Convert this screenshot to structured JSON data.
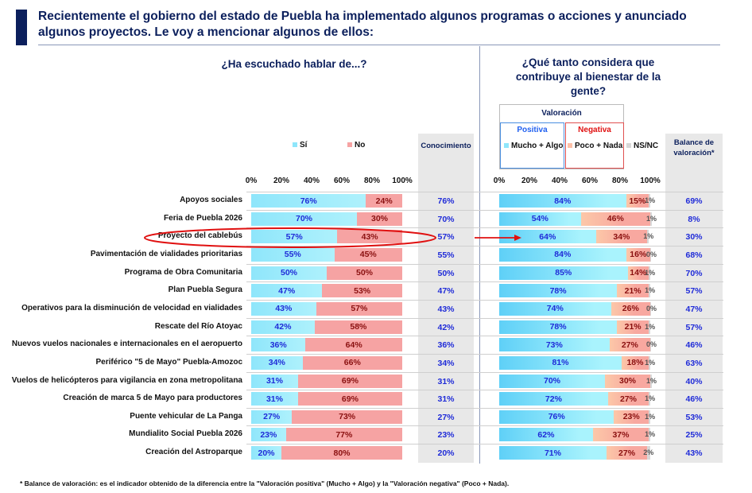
{
  "title": "Recientemente el gobierno del estado de Puebla ha implementado algunos programas o acciones y anunciado algunos proyectos. Le voy a mencionar algunos de ellos:",
  "footnote": "* Balance de valoración: es el indicador obtenido de la diferencia entre la \"Valoración positiva\" (Mucho + Algo) y la \"Valoración negativa\" (Poco + Nada).",
  "colors": {
    "title": "#0b1f5c",
    "si": "#8fe6fb",
    "no": "#f6a3a3",
    "positive": "#5fd0f7",
    "negative": "#f8a8a0",
    "nsnc": "#d8d8d8",
    "value_text": "#1f2bd8",
    "highlight": "#e01010"
  },
  "chart_data": [
    {
      "type": "bar",
      "stacked": true,
      "orientation": "horizontal",
      "title": "¿Ha escuchado hablar de...?",
      "xlim": [
        0,
        100
      ],
      "ticks": [
        "0%",
        "20%",
        "40%",
        "60%",
        "80%",
        "100%"
      ],
      "legend": [
        "Sí",
        "No"
      ],
      "extra_column_header": "Conocimiento",
      "categories": [
        "Apoyos sociales",
        "Feria de Puebla 2026",
        "Proyecto del cablebús",
        "Pavimentación de vialidades prioritarias",
        "Programa de Obra Comunitaria",
        "Plan Puebla Segura",
        "Operativos para la disminución de velocidad en vialidades",
        "Rescate del Río Atoyac",
        "Nuevos vuelos nacionales e internacionales en el aeropuerto",
        "Periférico \"5 de Mayo\" Puebla-Amozoc",
        "Vuelos de helicópteros para vigilancia en zona metropolitana",
        "Creación de marca 5 de Mayo para productores",
        "Puente vehicular de La Panga",
        "Mundialito Social Puebla 2026",
        "Creación del Astroparque"
      ],
      "series": [
        {
          "name": "Sí",
          "values": [
            76,
            70,
            57,
            55,
            50,
            47,
            43,
            42,
            36,
            34,
            31,
            31,
            27,
            23,
            20
          ]
        },
        {
          "name": "No",
          "values": [
            24,
            30,
            43,
            45,
            50,
            53,
            57,
            58,
            64,
            66,
            69,
            69,
            73,
            77,
            80
          ]
        }
      ],
      "conocimiento": [
        76,
        70,
        57,
        55,
        50,
        47,
        43,
        42,
        36,
        34,
        31,
        31,
        27,
        23,
        20
      ],
      "highlighted_category": "Proyecto del cablebús"
    },
    {
      "type": "bar",
      "stacked": true,
      "orientation": "horizontal",
      "title": "¿Qué tanto considera que contribuye al bienestar de la gente?",
      "xlim": [
        0,
        100
      ],
      "ticks": [
        "0%",
        "20%",
        "40%",
        "60%",
        "80%",
        "100%"
      ],
      "legend_group": "Valoración",
      "legend_positive": "Positiva",
      "legend_negative": "Negativa",
      "legend": [
        "Mucho + Algo",
        "Poco + Nada",
        "NS/NC"
      ],
      "extra_column_header": "Balance de valoración*",
      "series": [
        {
          "name": "Mucho + Algo",
          "values": [
            84,
            54,
            64,
            84,
            85,
            78,
            74,
            78,
            73,
            81,
            70,
            72,
            76,
            62,
            71
          ]
        },
        {
          "name": "Poco + Nada",
          "values": [
            15,
            46,
            34,
            16,
            14,
            21,
            26,
            21,
            27,
            18,
            30,
            27,
            23,
            37,
            27
          ]
        },
        {
          "name": "NS/NC",
          "values": [
            1,
            1,
            1,
            0,
            1,
            1,
            0,
            1,
            0,
            1,
            1,
            1,
            1,
            1,
            2
          ]
        }
      ],
      "balance": [
        69,
        8,
        30,
        68,
        70,
        57,
        47,
        57,
        46,
        63,
        40,
        46,
        53,
        25,
        43
      ]
    }
  ]
}
